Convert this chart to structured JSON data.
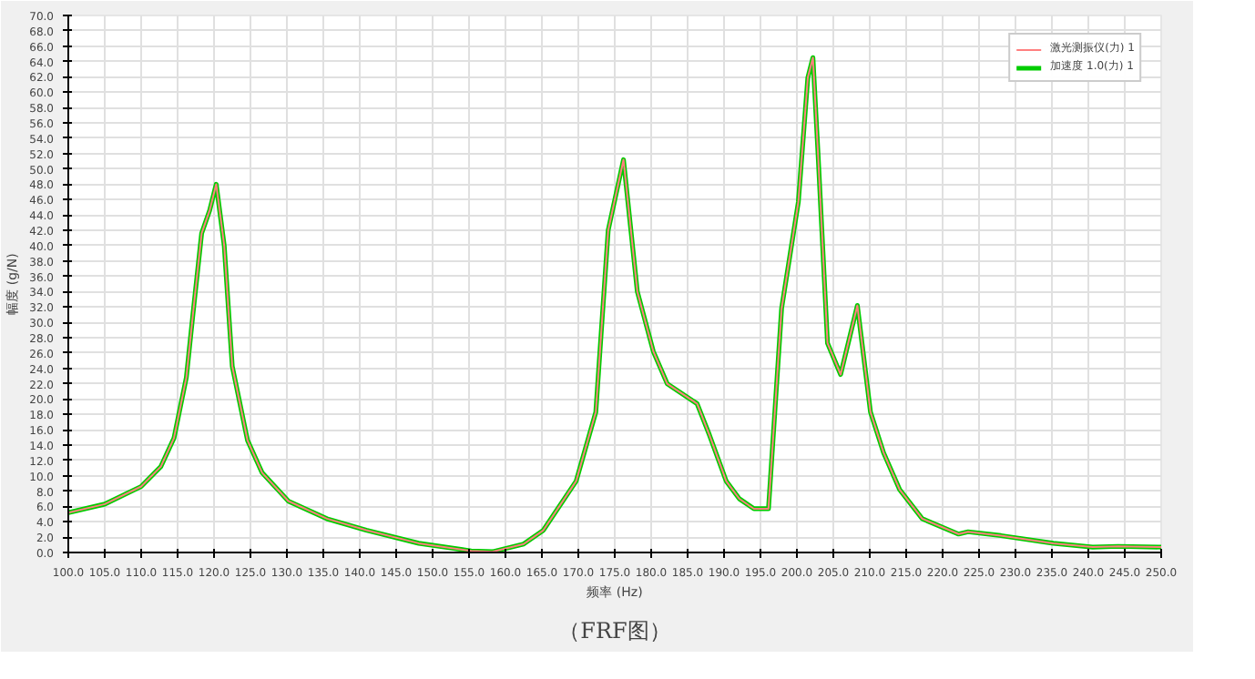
{
  "chart_data": {
    "type": "line",
    "xlabel": "频率 (Hz)",
    "ylabel": "幅度 (g/N)",
    "annotations": [
      "（FRF图）"
    ],
    "xlim": [
      100,
      250
    ],
    "xticks": [
      {
        "value": 100,
        "label": "100.0"
      },
      {
        "value": 105,
        "label": "105.0"
      },
      {
        "value": 110,
        "label": "110.0"
      },
      {
        "value": 115,
        "label": "115.0"
      },
      {
        "value": 120,
        "label": "120.0"
      },
      {
        "value": 125,
        "label": "125.0"
      },
      {
        "value": 130,
        "label": "130.0"
      },
      {
        "value": 135,
        "label": "135.0"
      },
      {
        "value": 140,
        "label": "140.0"
      },
      {
        "value": 145,
        "label": "145.0"
      },
      {
        "value": 150,
        "label": "150.0"
      },
      {
        "value": 155,
        "label": "155.0"
      },
      {
        "value": 160,
        "label": "160.0"
      },
      {
        "value": 165,
        "label": "165.0"
      },
      {
        "value": 170,
        "label": "170.0"
      },
      {
        "value": 175,
        "label": "175.0"
      },
      {
        "value": 180,
        "label": "180.0"
      },
      {
        "value": 185,
        "label": "185.0"
      },
      {
        "value": 190,
        "label": "190.0"
      },
      {
        "value": 195,
        "label": "195.0"
      },
      {
        "value": 200,
        "label": "200.0"
      },
      {
        "value": 205,
        "label": "205.0"
      },
      {
        "value": 210,
        "label": "210.0"
      },
      {
        "value": 215,
        "label": "215.0"
      },
      {
        "value": 220,
        "label": "220.0"
      },
      {
        "value": 225,
        "label": "225.0"
      },
      {
        "value": 230,
        "label": "230.0"
      },
      {
        "value": 235,
        "label": "235.0"
      },
      {
        "value": 240,
        "label": "240.0"
      },
      {
        "value": 245,
        "label": "245.0"
      },
      {
        "value": 250,
        "label": "250.0"
      }
    ],
    "ylim": [
      0,
      70
    ],
    "yticks": [
      {
        "value": 0,
        "label": "0.0"
      },
      {
        "value": 2,
        "label": "2.0"
      },
      {
        "value": 4,
        "label": "4.0"
      },
      {
        "value": 6,
        "label": "6.0"
      },
      {
        "value": 8,
        "label": "8.0"
      },
      {
        "value": 10,
        "label": "10.0"
      },
      {
        "value": 12,
        "label": "12.0"
      },
      {
        "value": 14,
        "label": "14.0"
      },
      {
        "value": 16,
        "label": "16.0"
      },
      {
        "value": 18,
        "label": "18.0"
      },
      {
        "value": 20,
        "label": "20.0"
      },
      {
        "value": 22,
        "label": "22.0"
      },
      {
        "value": 24,
        "label": "24.0"
      },
      {
        "value": 26,
        "label": "26.0"
      },
      {
        "value": 28,
        "label": "28.0"
      },
      {
        "value": 30,
        "label": "30.0"
      },
      {
        "value": 32,
        "label": "32.0"
      },
      {
        "value": 34,
        "label": "34.0"
      },
      {
        "value": 36,
        "label": "36.0"
      },
      {
        "value": 38,
        "label": "38.0"
      },
      {
        "value": 40,
        "label": "40.0"
      },
      {
        "value": 42,
        "label": "42.0"
      },
      {
        "value": 44,
        "label": "44.0"
      },
      {
        "value": 46,
        "label": "46.0"
      },
      {
        "value": 48,
        "label": "48.0"
      },
      {
        "value": 50,
        "label": "50.0"
      },
      {
        "value": 52,
        "label": "52.0"
      },
      {
        "value": 54,
        "label": "54.0"
      },
      {
        "value": 56,
        "label": "56.0"
      },
      {
        "value": 58,
        "label": "58.0"
      },
      {
        "value": 60,
        "label": "60.0"
      },
      {
        "value": 62,
        "label": "62.0"
      },
      {
        "value": 64,
        "label": "64.0"
      },
      {
        "value": 66,
        "label": "66.0"
      },
      {
        "value": 68,
        "label": "68.0"
      },
      {
        "value": 70,
        "label": "70.0"
      }
    ],
    "x": [
      100,
      105,
      110,
      112.7,
      114.5,
      116.2,
      117.1,
      118.3,
      119.4,
      120.3,
      121.4,
      122.5,
      124.6,
      126.6,
      130.2,
      135.5,
      140.9,
      148.1,
      155.3,
      158.2,
      162.5,
      165.2,
      169.7,
      172.4,
      174.1,
      176.2,
      178.1,
      180.3,
      182.2,
      186.3,
      188,
      190.3,
      192.1,
      194.1,
      196.1,
      197.9,
      200.2,
      201.5,
      202.2,
      202.9,
      204.2,
      206,
      208.3,
      210.1,
      211.9,
      214.1,
      217.2,
      222.2,
      223.5,
      228,
      235.2,
      240.6,
      244.1,
      250
    ],
    "series": [
      {
        "name": "加速度 1.0(力) 1",
        "color": "#00cc00",
        "values": [
          5.2,
          6.3,
          8.6,
          11.2,
          14.9,
          22.8,
          31,
          41.6,
          44.6,
          48,
          40,
          24.3,
          14.6,
          10.4,
          6.7,
          4.4,
          2.9,
          1.2,
          0.2,
          0.1,
          1.1,
          2.9,
          9.3,
          18.3,
          42,
          51.2,
          34,
          26.2,
          22,
          19.4,
          15.3,
          9.3,
          7,
          5.7,
          5.7,
          31.8,
          45.7,
          61.9,
          64.5,
          52,
          27.3,
          23.2,
          32.2,
          18.3,
          13,
          8.2,
          4.4,
          2.4,
          2.7,
          2.2,
          1.2,
          0.7,
          0.8,
          0.7
        ]
      },
      {
        "name": "激光测振仪(力) 1",
        "color": "#ff8080",
        "values": [
          5.2,
          6.3,
          8.6,
          11.2,
          14.9,
          22.8,
          31,
          41.6,
          44.6,
          48,
          40,
          24.3,
          14.6,
          10.4,
          6.7,
          4.4,
          2.9,
          1.2,
          0.2,
          0.1,
          1.1,
          2.9,
          9.3,
          18.3,
          42,
          51.2,
          34,
          26.2,
          22,
          19.4,
          15.3,
          9.3,
          7,
          5.7,
          5.7,
          31.8,
          45.7,
          61.9,
          64.5,
          52,
          27.3,
          23.2,
          32.2,
          18.3,
          13,
          8.2,
          4.4,
          2.4,
          2.7,
          2.2,
          1.2,
          0.7,
          0.8,
          0.7
        ]
      }
    ],
    "grid": true,
    "legend": "top right",
    "line_style": "solid"
  }
}
